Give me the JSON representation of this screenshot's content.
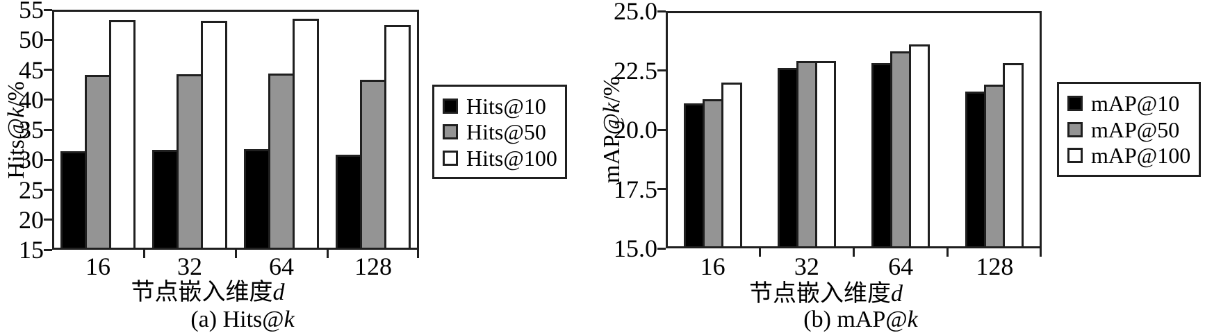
{
  "style": {
    "background": "#ffffff",
    "axis_color": "#1f1f1f",
    "text_color": "#000000",
    "bar_border_color": "#1f1f1f"
  },
  "chart_data": [
    {
      "type": "bar",
      "caption": "(a) Hits@k",
      "caption_parts": [
        {
          "text": "(a) Hits@"
        },
        {
          "text": "k",
          "italic": true
        }
      ],
      "xlabel": "节点嵌入维度d",
      "xlabel_parts": [
        {
          "text": "节点嵌入维度"
        },
        {
          "text": "d",
          "italic": true
        }
      ],
      "ylabel": "Hits@k/%",
      "ylabel_parts": [
        {
          "text": "Hits@"
        },
        {
          "text": "k",
          "italic": true
        },
        {
          "text": "/%"
        }
      ],
      "categories": [
        "16",
        "32",
        "64",
        "128"
      ],
      "series": [
        {
          "name": "Hits@10",
          "fill": "#000000",
          "values": [
            31.4,
            31.6,
            31.8,
            30.8
          ]
        },
        {
          "name": "Hits@50",
          "fill": "#949494",
          "values": [
            44.1,
            44.2,
            44.4,
            43.3
          ]
        },
        {
          "name": "Hits@100",
          "fill": "#ffffff",
          "values": [
            53.3,
            53.1,
            53.5,
            52.5
          ]
        }
      ],
      "ylim": [
        15,
        55
      ],
      "yticks": [
        15,
        20,
        25,
        30,
        35,
        40,
        45,
        50,
        55
      ],
      "ytick_labels": [
        "15",
        "20",
        "25",
        "30",
        "35",
        "40",
        "45",
        "50",
        "55"
      ],
      "legend_position": "outside-right",
      "grid": false
    },
    {
      "type": "bar",
      "caption": "(b) mAP@k",
      "caption_parts": [
        {
          "text": "(b) mAP@"
        },
        {
          "text": "k",
          "italic": true
        }
      ],
      "xlabel": "节点嵌入维度d",
      "xlabel_parts": [
        {
          "text": "节点嵌入维度"
        },
        {
          "text": "d",
          "italic": true
        }
      ],
      "ylabel": "mAP@k/%",
      "ylabel_parts": [
        {
          "text": "mAP@"
        },
        {
          "text": "k",
          "italic": true
        },
        {
          "text": "/%"
        }
      ],
      "categories": [
        "16",
        "32",
        "64",
        "128"
      ],
      "series": [
        {
          "name": "mAP@10",
          "fill": "#000000",
          "values": [
            21.1,
            22.6,
            22.8,
            21.6
          ]
        },
        {
          "name": "mAP@50",
          "fill": "#949494",
          "values": [
            21.3,
            22.9,
            23.3,
            21.9
          ]
        },
        {
          "name": "mAP@100",
          "fill": "#ffffff",
          "values": [
            22.0,
            22.9,
            23.6,
            22.8
          ]
        }
      ],
      "ylim": [
        15,
        25
      ],
      "yticks": [
        15,
        17.5,
        20,
        22.5,
        25
      ],
      "ytick_labels": [
        "15.0",
        "17.5",
        "20.0",
        "22.5",
        "25.0"
      ],
      "legend_position": "outside-right",
      "grid": false
    }
  ]
}
